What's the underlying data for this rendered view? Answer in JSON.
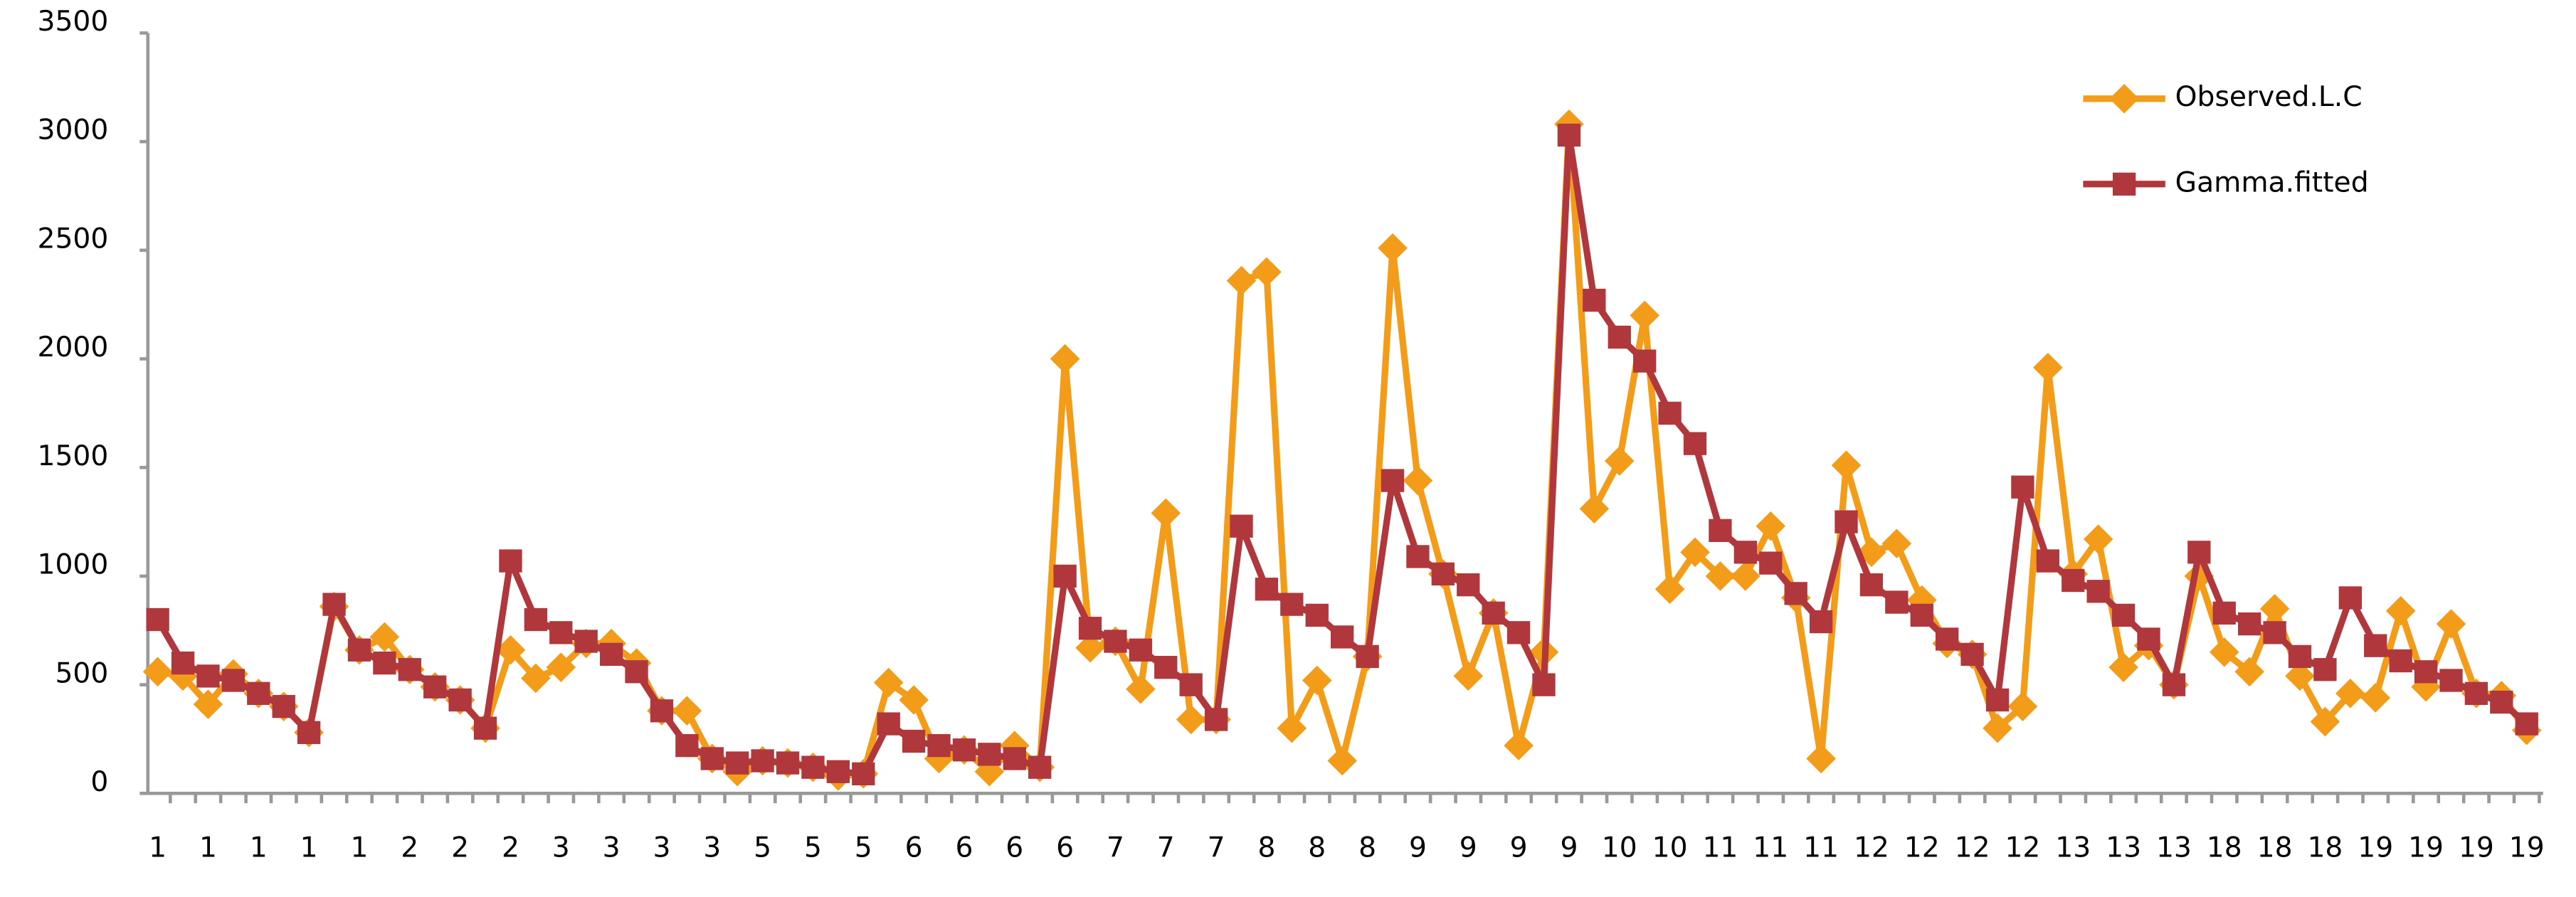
{
  "chart_data": {
    "type": "line",
    "categories": [
      "1",
      null,
      "1",
      null,
      "1",
      null,
      "1",
      null,
      "1",
      null,
      "2",
      null,
      "2",
      null,
      "2",
      null,
      "3",
      null,
      "3",
      null,
      "3",
      null,
      "3",
      null,
      "5",
      null,
      "5",
      null,
      "5",
      null,
      "6",
      null,
      "6",
      null,
      "6",
      null,
      "6",
      null,
      "7",
      null,
      "7",
      null,
      "7",
      null,
      "8",
      null,
      "8",
      null,
      "8",
      null,
      "9",
      null,
      "9",
      null,
      "9",
      null,
      "9",
      null,
      "10",
      null,
      "10",
      null,
      "11",
      null,
      "11",
      null,
      "11",
      null,
      "12",
      null,
      "12",
      null,
      "12",
      null,
      "12",
      null,
      "13",
      null,
      "13",
      null,
      "13",
      null,
      "18",
      null,
      "18",
      null,
      "18",
      null,
      "19",
      null,
      "19",
      null,
      "19",
      null,
      "19"
    ],
    "series": [
      {
        "name": "Observed.L.C",
        "color": "#f39c1a",
        "marker": "diamond",
        "values": [
          560,
          540,
          410,
          550,
          460,
          400,
          280,
          860,
          660,
          720,
          570,
          490,
          430,
          300,
          660,
          530,
          580,
          690,
          690,
          600,
          380,
          380,
          160,
          100,
          150,
          140,
          120,
          80,
          90,
          510,
          430,
          160,
          200,
          100,
          220,
          120,
          2000,
          670,
          700,
          480,
          1290,
          340,
          340,
          2360,
          2400,
          300,
          520,
          150,
          630,
          2510,
          1440,
          1010,
          540,
          830,
          220,
          650,
          3080,
          1310,
          1530,
          2200,
          940,
          1110,
          1000,
          1000,
          1230,
          900,
          160,
          1510,
          1110,
          1150,
          890,
          690,
          640,
          300,
          400,
          1960,
          1010,
          1170,
          580,
          680,
          500,
          1000,
          650,
          560,
          850,
          540,
          330,
          460,
          440,
          840,
          490,
          780,
          460,
          450,
          290
        ]
      },
      {
        "name": "Gamma.fitted",
        "color": "#b0383c",
        "marker": "square",
        "values": [
          800,
          600,
          540,
          520,
          460,
          400,
          280,
          870,
          660,
          600,
          570,
          490,
          430,
          300,
          1070,
          800,
          740,
          700,
          640,
          560,
          380,
          220,
          160,
          140,
          150,
          140,
          120,
          100,
          90,
          320,
          240,
          220,
          200,
          180,
          160,
          120,
          1000,
          760,
          700,
          660,
          580,
          500,
          340,
          1230,
          940,
          870,
          820,
          720,
          630,
          1440,
          1090,
          1010,
          960,
          830,
          740,
          500,
          3030,
          2270,
          2100,
          1990,
          1750,
          1610,
          1210,
          1110,
          1060,
          920,
          790,
          1250,
          960,
          880,
          820,
          710,
          640,
          430,
          1410,
          1070,
          980,
          930,
          820,
          710,
          500,
          1110,
          830,
          780,
          740,
          630,
          570,
          900,
          680,
          610,
          560,
          520,
          460,
          420,
          320
        ]
      }
    ],
    "ylim": [
      0,
      3500
    ],
    "yticks": [
      0,
      500,
      1000,
      1500,
      2000,
      2500,
      3000,
      3500
    ],
    "legend": "top-right"
  }
}
